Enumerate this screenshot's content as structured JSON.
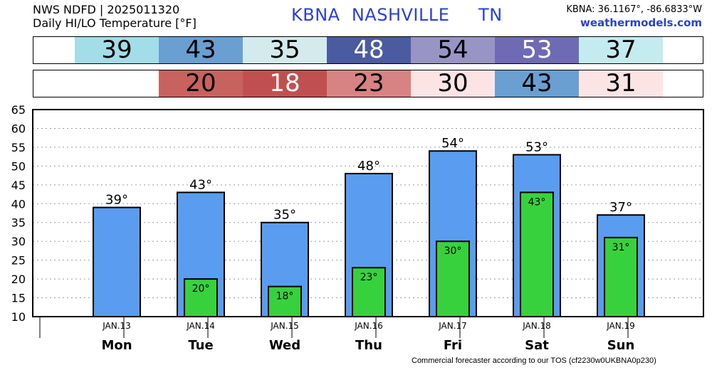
{
  "header": {
    "line1": "NWS NDFD | 2025011320",
    "line2": "Daily HI/LO Temperature [°F]",
    "station_title": "KBNA  NASHVILLE     TN",
    "coords": "KBNA: 36.1167°, -86.6833°W",
    "site": "weathermodels.com"
  },
  "high_strip": [
    {
      "value": "39",
      "color": "#a3dde8"
    },
    {
      "value": "43",
      "color": "#6a9fd2"
    },
    {
      "value": "35",
      "color": "#d3ebec"
    },
    {
      "value": "48",
      "color": "#4b5ba0"
    },
    {
      "value": "54",
      "color": "#9894c3"
    },
    {
      "value": "53",
      "color": "#6e6bb4"
    },
    {
      "value": "37",
      "color": "#c4ebf0"
    }
  ],
  "low_strip": [
    {
      "value": "",
      "color": "#ffffff"
    },
    {
      "value": "20",
      "color": "#c8625f"
    },
    {
      "value": "18",
      "color": "#c05050"
    },
    {
      "value": "23",
      "color": "#d88383"
    },
    {
      "value": "30",
      "color": "#fde4e4"
    },
    {
      "value": "43",
      "color": "#6a9fd2"
    },
    {
      "value": "31",
      "color": "#fde4e4"
    }
  ],
  "chart_data": {
    "type": "bar",
    "days": [
      "Mon",
      "Tue",
      "Wed",
      "Thu",
      "Fri",
      "Sat",
      "Sun"
    ],
    "dates": [
      "JAN.13",
      "JAN.14",
      "JAN.15",
      "JAN.16",
      "JAN.17",
      "JAN.18",
      "JAN.19"
    ],
    "series": [
      {
        "values": [
          39,
          43,
          35,
          48,
          54,
          53,
          37
        ],
        "color": "#5a9cf0"
      },
      {
        "values": [
          null,
          20,
          18,
          23,
          30,
          43,
          31
        ],
        "color": "#38d13e"
      }
    ],
    "high_labels": [
      "39°",
      "43°",
      "35°",
      "48°",
      "54°",
      "53°",
      "37°"
    ],
    "low_labels": [
      "",
      "20°",
      "18°",
      "23°",
      "30°",
      "43°",
      "31°"
    ],
    "ylim": [
      10,
      65
    ],
    "yticks": [
      "10",
      "15",
      "20",
      "25",
      "30",
      "35",
      "40",
      "45",
      "50",
      "55",
      "60",
      "65"
    ],
    "grid": true
  },
  "footer": "Commercial forecaster according to our TOS (cf2230w0UKBNA0p230)"
}
